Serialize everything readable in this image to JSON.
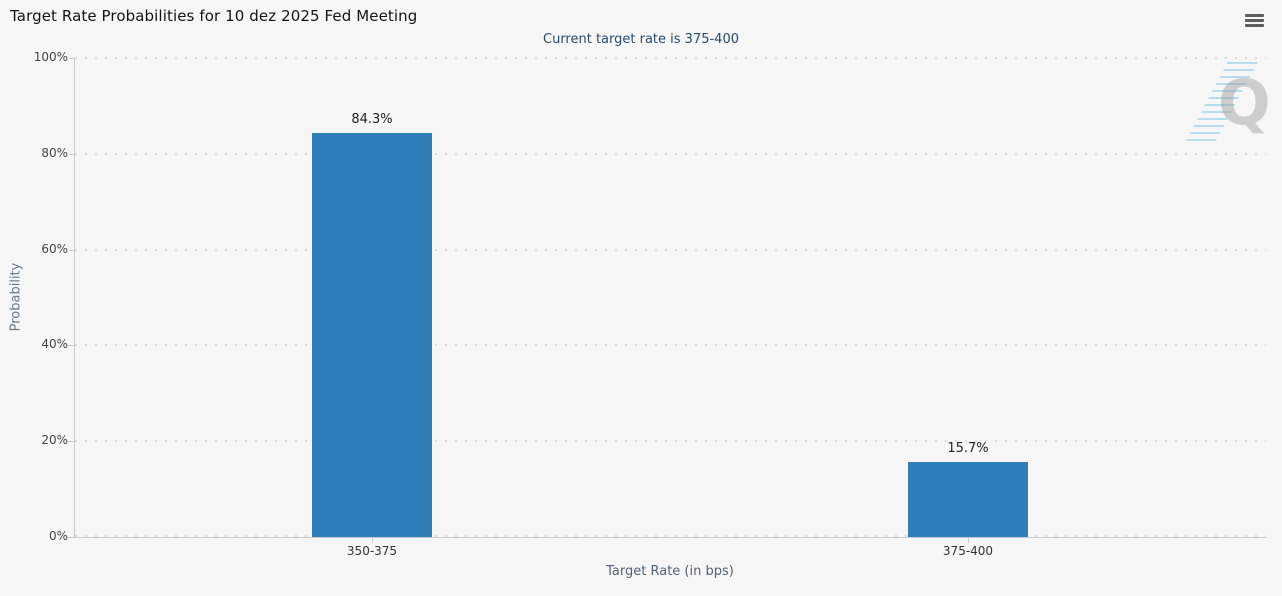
{
  "chart_data": {
    "type": "bar",
    "title": "Target Rate Probabilities for 10 dez 2025 Fed Meeting",
    "subtitle": "Current target rate is 375-400",
    "categories": [
      "350-375",
      "375-400"
    ],
    "values": [
      84.3,
      15.7
    ],
    "value_labels": [
      "84.3%",
      "15.7%"
    ],
    "xlabel": "Target Rate (in bps)",
    "ylabel": "Probability",
    "ylim": [
      0,
      100
    ],
    "yticks": [
      "0%",
      "20%",
      "40%",
      "60%",
      "80%",
      "100%"
    ],
    "grid": "horizontal-dotted",
    "legend": "none",
    "bar_color": "#2d7eb9"
  },
  "watermark": {
    "letter": "Q"
  },
  "colors": {
    "background": "#f6f6f6",
    "bar": "#2d7eb9",
    "subtitle": "#274b6d",
    "axis_title": "#6a7888",
    "grid_dots": "#d9d9d9",
    "axis_line": "#c9c9c9",
    "menu_icon": "#5e5e5e"
  }
}
